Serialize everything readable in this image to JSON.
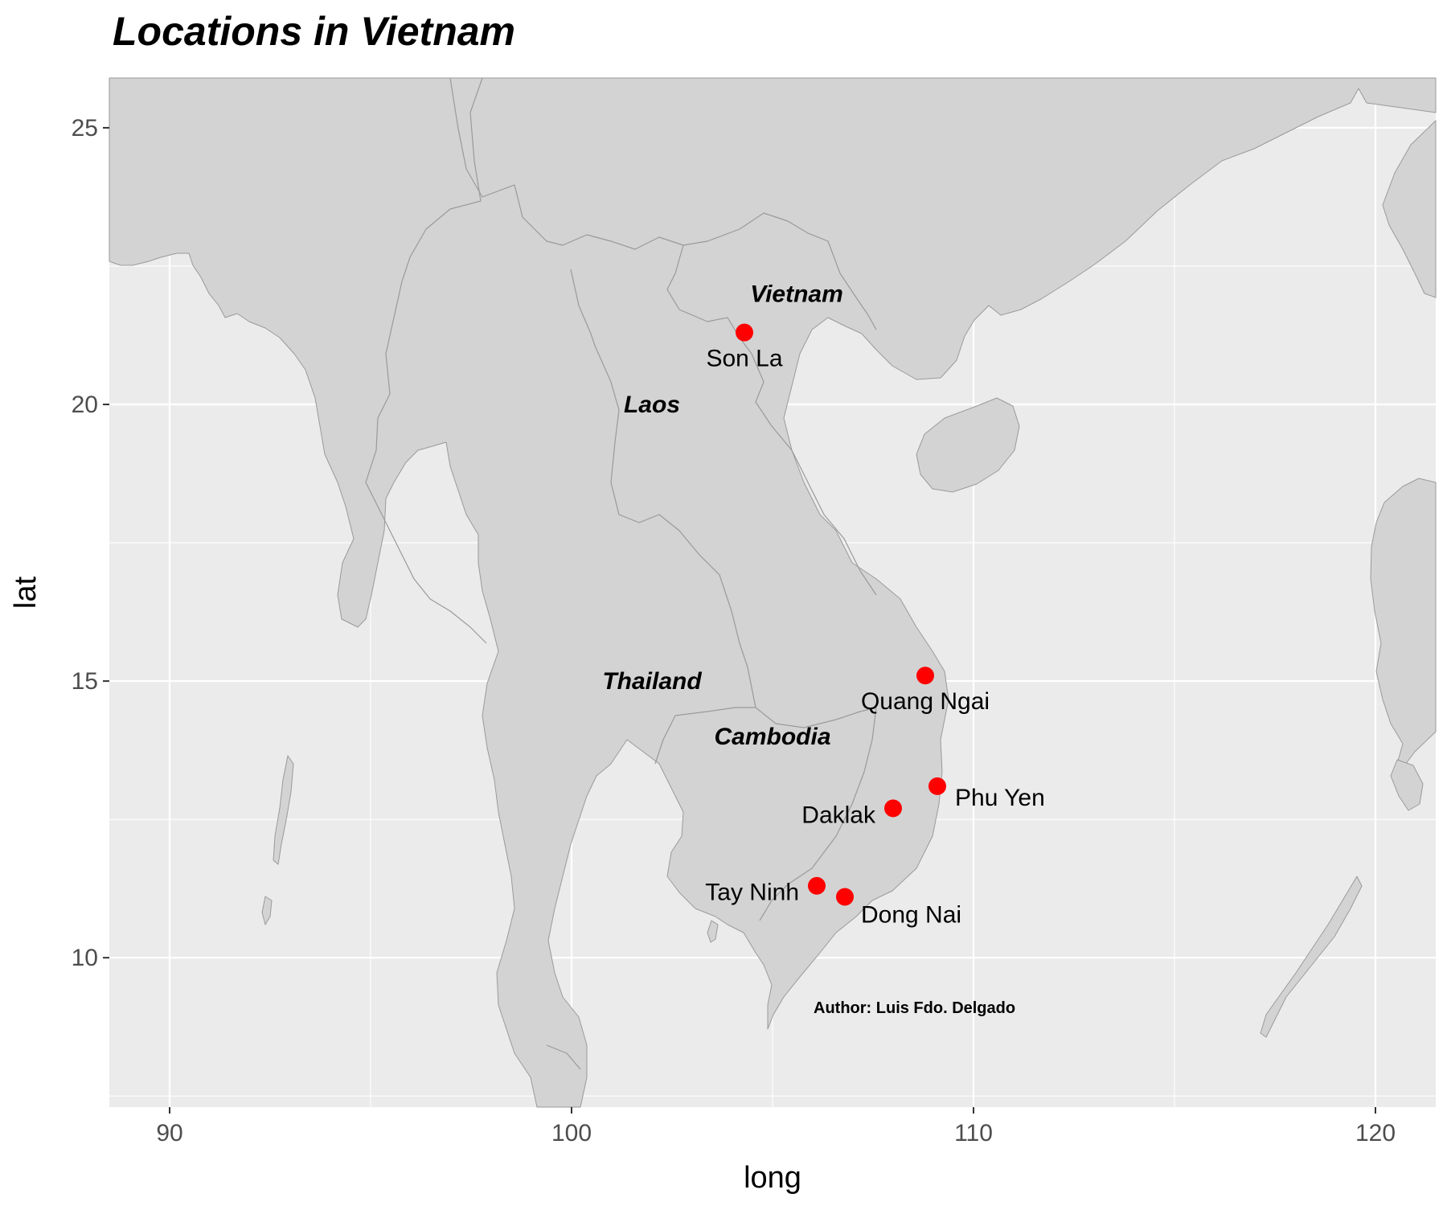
{
  "title": "Locations in Vietnam",
  "caption": "Author: Luis Fdo. Delgado",
  "colors": {
    "panel": "#ebebeb",
    "land": "#d3d3d3",
    "border": "#9a9a9a",
    "grid": "#ffffff",
    "point": "#ff0000"
  },
  "chart_data": {
    "type": "scatter",
    "xlabel": "long",
    "ylabel": "lat",
    "xlim": [
      88.5,
      121.5
    ],
    "ylim": [
      7.3,
      25.9
    ],
    "x_ticks": [
      90,
      100,
      110,
      120
    ],
    "y_ticks": [
      10,
      15,
      20,
      25
    ],
    "points": [
      {
        "name": "Son La",
        "long": 104.3,
        "lat": 21.3,
        "label_pos": "below"
      },
      {
        "name": "Quang Ngai",
        "long": 108.8,
        "lat": 15.1,
        "label_pos": "below"
      },
      {
        "name": "Phu Yen",
        "long": 109.1,
        "lat": 13.1,
        "label_pos": "right"
      },
      {
        "name": "Daklak",
        "long": 108.0,
        "lat": 12.7,
        "label_pos": "left"
      },
      {
        "name": "Tay Ninh",
        "long": 106.1,
        "lat": 11.3,
        "label_pos": "left"
      },
      {
        "name": "Dong Nai",
        "long": 106.8,
        "lat": 11.1,
        "label_pos": "below-right"
      }
    ],
    "country_labels": [
      {
        "name": "Vietnam",
        "long": 105.6,
        "lat": 22.0
      },
      {
        "name": "Laos",
        "long": 102.0,
        "lat": 20.0
      },
      {
        "name": "Thailand",
        "long": 102.0,
        "lat": 15.0
      },
      {
        "name": "Cambodia",
        "long": 105.0,
        "lat": 14.0
      }
    ]
  }
}
